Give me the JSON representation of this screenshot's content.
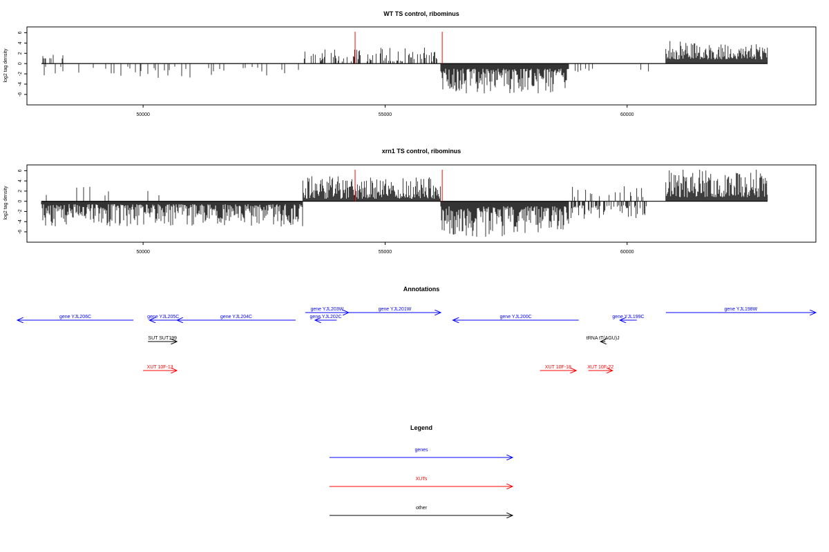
{
  "chart_data": [
    {
      "type": "bar",
      "title": "WT TS control, ribominus",
      "ylabel": "log2 tag density",
      "xlim": [
        47600,
        63900
      ],
      "ylim": [
        -7.5,
        6.6
      ],
      "x_ticks": [
        50000,
        55000,
        60000
      ],
      "x_tick_labels": [
        "50000",
        "55000",
        "60000"
      ],
      "y_ticks": [
        -6,
        -4,
        -2,
        0,
        2,
        4,
        6
      ],
      "y_tick_labels": [
        "-6",
        "-4",
        "-2",
        "0",
        "2",
        "4",
        "6"
      ],
      "baseline": [
        47900,
        62900
      ],
      "highlight_color": "#ff0000",
      "highlight_lines": [
        {
          "x": 54380,
          "y": 6.2
        },
        {
          "x": 56180,
          "y": 6.2
        }
      ],
      "series": [
        {
          "color": "#000000",
          "segments": [
            {
              "start": 47900,
              "end": 53300,
              "sign": -1,
              "density": 0.12,
              "min": 0.6,
              "max": 2.8
            },
            {
              "start": 47900,
              "end": 48400,
              "sign": 1,
              "density": 0.2,
              "min": 1.0,
              "max": 1.7
            },
            {
              "start": 53300,
              "end": 56150,
              "sign": 1,
              "density": 0.3,
              "min": 0.4,
              "max": 3.2
            },
            {
              "start": 56150,
              "end": 58800,
              "sign": -1,
              "density": 1.0,
              "min": 1.0,
              "max": 5.8
            },
            {
              "start": 58800,
              "end": 60500,
              "sign": -1,
              "density": 0.08,
              "min": 1.0,
              "max": 2.4
            },
            {
              "start": 60800,
              "end": 62900,
              "sign": 1,
              "density": 1.0,
              "min": 0.8,
              "max": 4.5
            }
          ]
        }
      ],
      "grid": false,
      "legend": "none"
    },
    {
      "type": "bar",
      "title": "xrn1 TS control, ribominus",
      "ylabel": "log2 tag density",
      "xlim": [
        47600,
        63900
      ],
      "ylim": [
        -7.5,
        6.6
      ],
      "x_ticks": [
        50000,
        55000,
        60000
      ],
      "x_tick_labels": [
        "50000",
        "55000",
        "60000"
      ],
      "y_ticks": [
        -6,
        -4,
        -2,
        0,
        2,
        4,
        6
      ],
      "y_tick_labels": [
        "-6",
        "-4",
        "-2",
        "0",
        "2",
        "4",
        "6"
      ],
      "baseline": [
        47900,
        62900
      ],
      "highlight_color": "#ff0000",
      "highlight_lines": [
        {
          "x": 54380,
          "y": 6.2
        },
        {
          "x": 56180,
          "y": 6.2
        }
      ],
      "series": [
        {
          "color": "#000000",
          "segments": [
            {
              "start": 47900,
              "end": 53300,
              "sign": -1,
              "density": 1.0,
              "min": 0.6,
              "max": 5.0
            },
            {
              "start": 47900,
              "end": 50500,
              "sign": 1,
              "density": 0.05,
              "min": 1.0,
              "max": 3.0
            },
            {
              "start": 53300,
              "end": 56150,
              "sign": 1,
              "density": 1.0,
              "min": 0.5,
              "max": 5.0
            },
            {
              "start": 56150,
              "end": 58800,
              "sign": -1,
              "density": 1.0,
              "min": 1.0,
              "max": 7.0
            },
            {
              "start": 58800,
              "end": 60400,
              "sign": -1,
              "density": 0.5,
              "min": 0.8,
              "max": 3.5
            },
            {
              "start": 58800,
              "end": 60400,
              "sign": 1,
              "density": 0.15,
              "min": 0.8,
              "max": 3.0
            },
            {
              "start": 60800,
              "end": 62900,
              "sign": 1,
              "density": 1.0,
              "min": 0.8,
              "max": 6.2
            }
          ]
        }
      ],
      "grid": false,
      "legend": "none"
    }
  ],
  "annotations": {
    "title": "Annotations",
    "xlim": [
      47600,
      63900
    ],
    "features": [
      {
        "label": "gene YJL206C",
        "type": "gene",
        "start": 49800,
        "end": 47400,
        "row": 2
      },
      {
        "label": "gene YJL205C",
        "type": "gene",
        "start": 50700,
        "end": 50130,
        "row": 2
      },
      {
        "label": "gene YJL204C",
        "type": "gene",
        "start": 53150,
        "end": 50700,
        "row": 2
      },
      {
        "label": "gene YJL203W",
        "type": "gene",
        "start": 53350,
        "end": 54250,
        "row": 1
      },
      {
        "label": "gene YJL202C",
        "type": "gene",
        "start": 54000,
        "end": 53550,
        "row": 2
      },
      {
        "label": "gene YJL201W",
        "type": "gene",
        "start": 54250,
        "end": 56150,
        "row": 1
      },
      {
        "label": "gene YJL200C",
        "type": "gene",
        "start": 59000,
        "end": 56400,
        "row": 2
      },
      {
        "label": "gene YJL199C",
        "type": "gene",
        "start": 60200,
        "end": 59850,
        "row": 2
      },
      {
        "label": "gene YJL198W",
        "type": "gene",
        "start": 60800,
        "end": 63900,
        "row": 1
      },
      {
        "label": "SUT SUT199",
        "type": "other",
        "start": 50100,
        "end": 50700,
        "row": 3
      },
      {
        "label": "tRNA tT(AGU)J",
        "type": "other",
        "start": 59550,
        "end": 59450,
        "row": 3
      },
      {
        "label": "XUT 10F-13",
        "type": "xut",
        "start": 50000,
        "end": 50700,
        "row": 4
      },
      {
        "label": "XUT 10F-18",
        "type": "xut",
        "start": 58200,
        "end": 58950,
        "row": 4
      },
      {
        "label": "XUT 10F-22",
        "type": "xut",
        "start": 59200,
        "end": 59700,
        "row": 4
      }
    ]
  },
  "legend": {
    "title": "Legend",
    "items": [
      {
        "label": "genes",
        "color": "#0000ff"
      },
      {
        "label": "XUTs",
        "color": "#ff0000"
      },
      {
        "label": "other",
        "color": "#000000"
      }
    ]
  }
}
